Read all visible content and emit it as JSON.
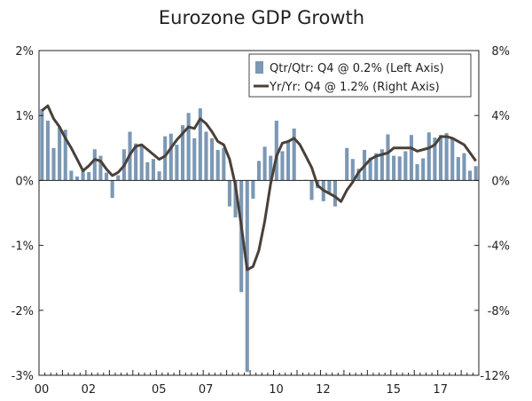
{
  "chart_data": {
    "type": "bar+line",
    "title": "Eurozone GDP Growth",
    "x_tick_labels": [
      "00",
      "02",
      "05",
      "07",
      "10",
      "12",
      "15",
      "17"
    ],
    "x_tick_quarter_index": [
      0,
      8,
      20,
      28,
      40,
      48,
      60,
      68
    ],
    "left_axis": {
      "ylim": [
        -3,
        2
      ],
      "ticks": [
        "2%",
        "1%",
        "0%",
        "-1%",
        "-2%",
        "-3%"
      ],
      "tick_values": [
        2,
        1,
        0,
        -1,
        -2,
        -3
      ]
    },
    "right_axis": {
      "ylim": [
        -12,
        8
      ],
      "ticks": [
        "8%",
        "4%",
        "0%",
        "-4%",
        "-8%",
        "-12%"
      ],
      "tick_values": [
        8,
        4,
        0,
        -4,
        -8,
        -12
      ]
    },
    "legend": {
      "placement": "top-right"
    },
    "series": [
      {
        "name": "Qtr/Qtr: Q4 @ 0.2% (Left Axis)",
        "type": "bar",
        "axis": "left",
        "color": "#7b98b4",
        "values": [
          1.1,
          0.92,
          0.5,
          0.82,
          0.78,
          0.15,
          0.06,
          0.18,
          0.13,
          0.48,
          0.38,
          0.12,
          -0.27,
          0.08,
          0.48,
          0.75,
          0.57,
          0.55,
          0.28,
          0.33,
          0.14,
          0.68,
          0.72,
          0.55,
          0.85,
          1.04,
          0.65,
          1.11,
          0.75,
          0.65,
          0.47,
          0.5,
          -0.4,
          -0.57,
          -1.72,
          -2.95,
          -0.28,
          0.3,
          0.52,
          0.38,
          0.92,
          0.45,
          0.6,
          0.8,
          0.0,
          0.01,
          -0.3,
          -0.12,
          -0.32,
          -0.2,
          -0.4,
          0.0,
          0.5,
          0.33,
          0.18,
          0.47,
          0.35,
          0.42,
          0.48,
          0.71,
          0.38,
          0.37,
          0.45,
          0.7,
          0.25,
          0.34,
          0.74,
          0.66,
          0.7,
          0.73,
          0.66,
          0.36,
          0.42,
          0.15,
          0.22
        ]
      },
      {
        "name": "Yr/Yr: Q4 @ 1.2% (Right Axis)",
        "type": "line",
        "axis": "right",
        "color": "#4a4038",
        "values": [
          4.3,
          4.6,
          3.8,
          3.3,
          2.6,
          2.0,
          1.3,
          0.6,
          0.9,
          1.3,
          1.2,
          0.7,
          0.3,
          0.5,
          0.9,
          1.6,
          2.1,
          2.2,
          1.9,
          1.6,
          1.3,
          1.5,
          2.0,
          2.5,
          2.9,
          3.3,
          3.2,
          3.8,
          3.5,
          3.0,
          2.4,
          2.2,
          1.3,
          -0.3,
          -2.8,
          -5.5,
          -5.3,
          -4.3,
          -2.5,
          -0.2,
          1.5,
          2.3,
          2.4,
          2.6,
          2.2,
          1.5,
          0.8,
          -0.3,
          -0.6,
          -0.8,
          -1.0,
          -1.3,
          -0.6,
          -0.1,
          0.5,
          0.9,
          1.3,
          1.5,
          1.6,
          1.7,
          2.0,
          2.0,
          2.0,
          2.0,
          1.8,
          1.9,
          2.0,
          2.2,
          2.7,
          2.7,
          2.6,
          2.4,
          2.2,
          1.7,
          1.2
        ]
      }
    ]
  }
}
